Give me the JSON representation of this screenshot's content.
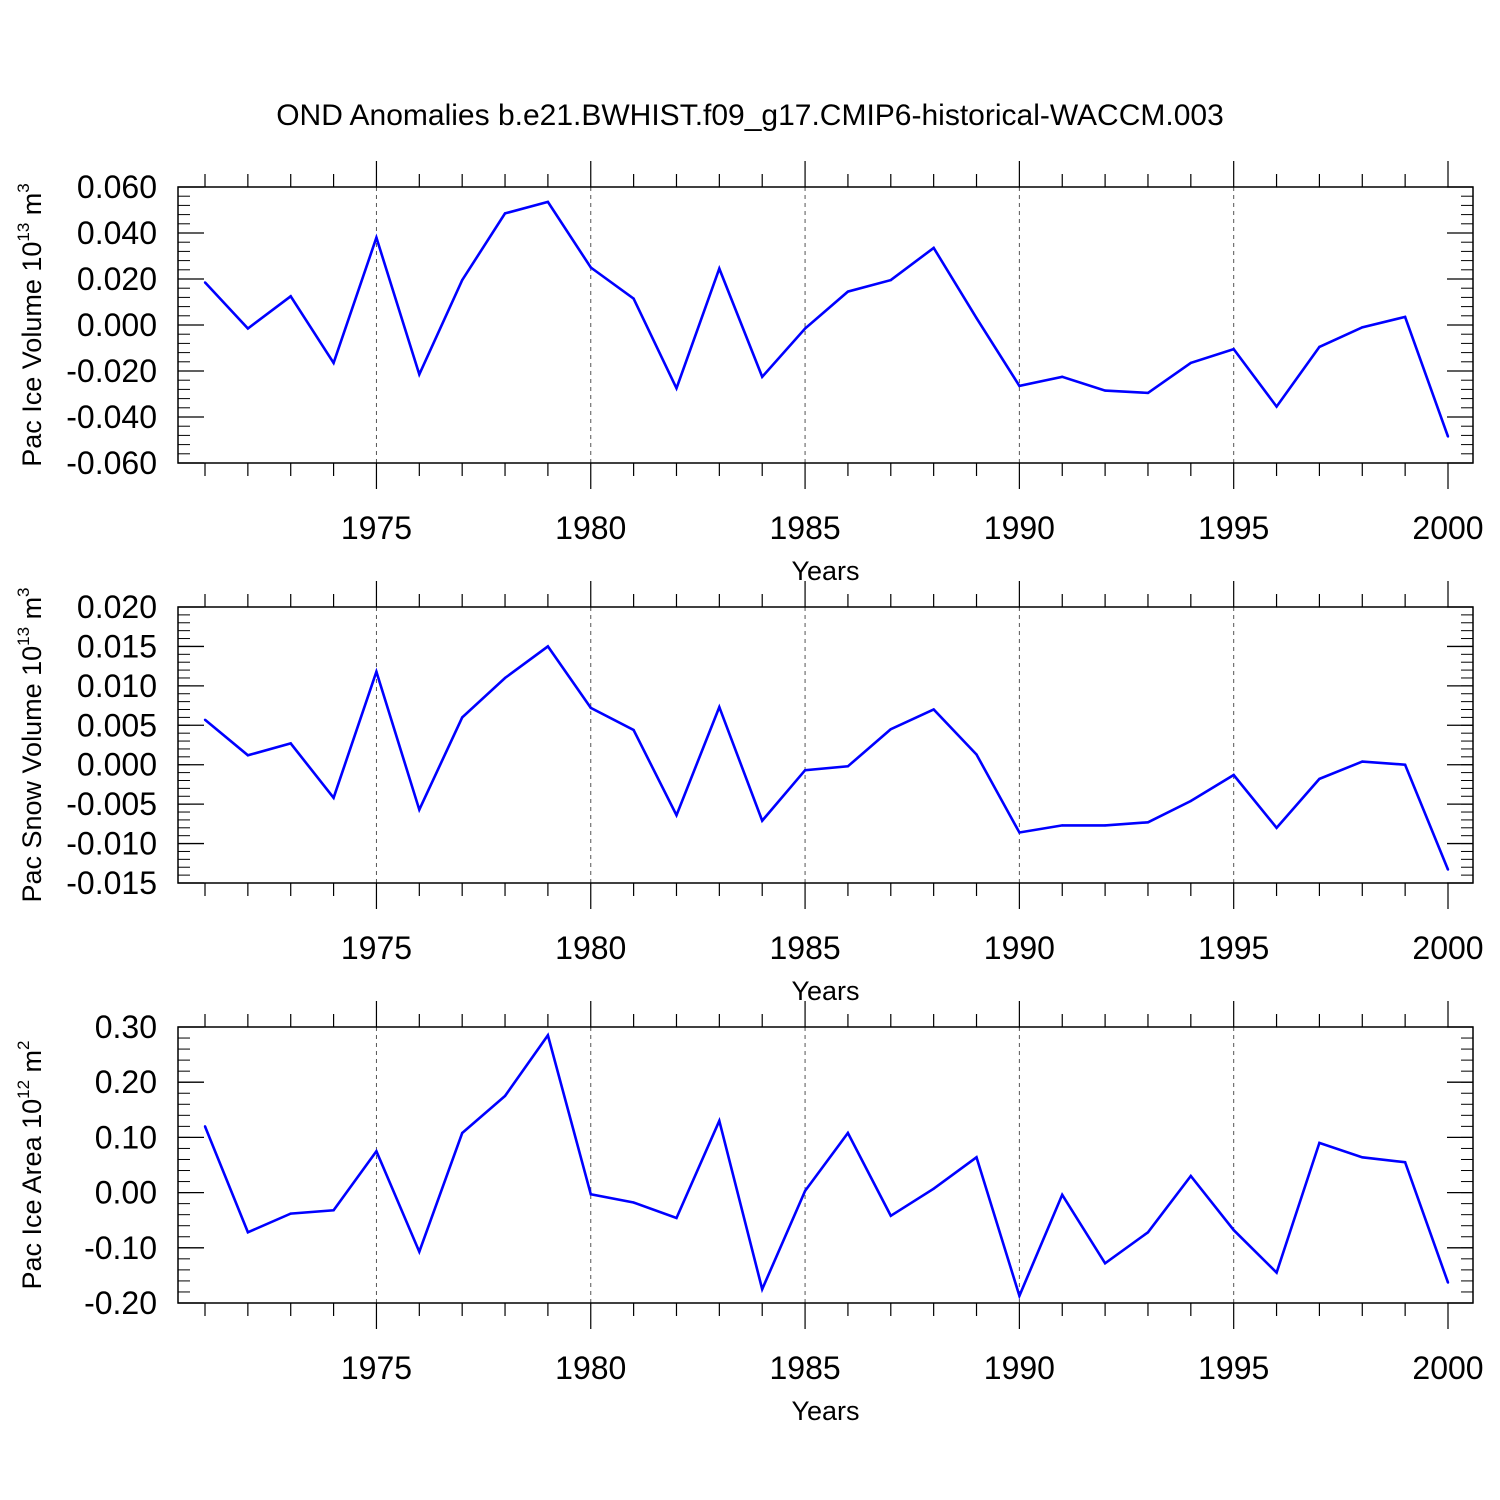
{
  "figure": {
    "title": "OND Anomalies b.e21.BWHIST.f09_g17.CMIP6-historical-WACCM.003"
  },
  "colors": {
    "series": "#0000ff",
    "axis": "#000000",
    "grid": "#555555"
  },
  "chart_data": [
    {
      "type": "line",
      "ylabel": {
        "pre": "Pac Ice Volume 10",
        "sup1": "13",
        "mid": " m",
        "sup2": "3"
      },
      "xlabel": "Years",
      "xlim": [
        1971,
        2000
      ],
      "ylim": [
        -0.06,
        0.06
      ],
      "x_tick_values": [
        1975,
        1980,
        1985,
        1990,
        1995,
        2000
      ],
      "x_tick_labels": [
        "1975",
        "1980",
        "1985",
        "1990",
        "1995",
        "2000"
      ],
      "y_tick_values": [
        -0.06,
        -0.04,
        -0.02,
        0.0,
        0.02,
        0.04,
        0.06
      ],
      "y_tick_labels": [
        "-0.060",
        "-0.040",
        "-0.020",
        "0.000",
        "0.020",
        "0.040",
        "0.060"
      ],
      "y_minor_step": 0.004,
      "grid": "dashed vertical at major x ticks",
      "x": [
        1971,
        1972,
        1973,
        1974,
        1975,
        1976,
        1977,
        1978,
        1979,
        1980,
        1981,
        1982,
        1983,
        1984,
        1985,
        1986,
        1987,
        1988,
        1989,
        1990,
        1991,
        1992,
        1993,
        1994,
        1995,
        1996,
        1997,
        1998,
        1999,
        2000
      ],
      "series": [
        {
          "values": [
            0.0185,
            -0.0015,
            0.0125,
            -0.0165,
            0.038,
            -0.0215,
            0.0195,
            0.0485,
            0.0535,
            0.025,
            0.0115,
            -0.0275,
            0.0245,
            -0.0225,
            -0.0015,
            0.0145,
            0.0195,
            0.0335,
            0.003,
            -0.0265,
            -0.0225,
            -0.0285,
            -0.0295,
            -0.0165,
            -0.0105,
            -0.0355,
            -0.0095,
            -0.001,
            0.0035,
            -0.0485
          ]
        }
      ]
    },
    {
      "type": "line",
      "ylabel": {
        "pre": "Pac Snow Volume 10",
        "sup1": "13",
        "mid": " m",
        "sup2": "3"
      },
      "xlabel": "Years",
      "xlim": [
        1971,
        2000
      ],
      "ylim": [
        -0.015,
        0.02
      ],
      "x_tick_values": [
        1975,
        1980,
        1985,
        1990,
        1995,
        2000
      ],
      "x_tick_labels": [
        "1975",
        "1980",
        "1985",
        "1990",
        "1995",
        "2000"
      ],
      "y_tick_values": [
        -0.015,
        -0.01,
        -0.005,
        0.0,
        0.005,
        0.01,
        0.015,
        0.02
      ],
      "y_tick_labels": [
        "-0.015",
        "-0.010",
        "-0.005",
        "0.000",
        "0.005",
        "0.010",
        "0.015",
        "0.020"
      ],
      "y_minor_step": 0.001,
      "grid": "dashed vertical at major x ticks",
      "x": [
        1971,
        1972,
        1973,
        1974,
        1975,
        1976,
        1977,
        1978,
        1979,
        1980,
        1981,
        1982,
        1983,
        1984,
        1985,
        1986,
        1987,
        1988,
        1989,
        1990,
        1991,
        1992,
        1993,
        1994,
        1995,
        1996,
        1997,
        1998,
        1999,
        2000
      ],
      "series": [
        {
          "values": [
            0.0057,
            0.0012,
            0.0027,
            -0.0042,
            0.0118,
            -0.0057,
            0.006,
            0.011,
            0.015,
            0.0072,
            0.0044,
            -0.0064,
            0.0073,
            -0.0071,
            -0.0007,
            -0.0002,
            0.0045,
            0.007,
            0.0013,
            -0.0086,
            -0.0077,
            -0.0077,
            -0.0073,
            -0.0046,
            -0.0013,
            -0.008,
            -0.0018,
            0.0004,
            0.0,
            -0.0133
          ]
        }
      ]
    },
    {
      "type": "line",
      "ylabel": {
        "pre": "Pac Ice Area 10",
        "sup1": "12",
        "mid": " m",
        "sup2": "2"
      },
      "xlabel": "Years",
      "xlim": [
        1971,
        2000
      ],
      "ylim": [
        -0.2,
        0.3
      ],
      "x_tick_values": [
        1975,
        1980,
        1985,
        1990,
        1995,
        2000
      ],
      "x_tick_labels": [
        "1975",
        "1980",
        "1985",
        "1990",
        "1995",
        "2000"
      ],
      "y_tick_values": [
        -0.2,
        -0.1,
        0.0,
        0.1,
        0.2,
        0.3
      ],
      "y_tick_labels": [
        "-0.20",
        "-0.10",
        "0.00",
        "0.10",
        "0.20",
        "0.30"
      ],
      "y_minor_step": 0.02,
      "grid": "dashed vertical at major x ticks",
      "x": [
        1971,
        1972,
        1973,
        1974,
        1975,
        1976,
        1977,
        1978,
        1979,
        1980,
        1981,
        1982,
        1983,
        1984,
        1985,
        1986,
        1987,
        1988,
        1989,
        1990,
        1991,
        1992,
        1993,
        1994,
        1995,
        1996,
        1997,
        1998,
        1999,
        2000
      ],
      "series": [
        {
          "values": [
            0.12,
            -0.072,
            -0.038,
            -0.032,
            0.075,
            -0.107,
            0.108,
            0.175,
            0.285,
            -0.003,
            -0.018,
            -0.046,
            0.13,
            -0.175,
            0.003,
            0.108,
            -0.042,
            0.007,
            0.064,
            -0.187,
            -0.004,
            -0.128,
            -0.072,
            0.03,
            -0.068,
            -0.145,
            0.09,
            0.064,
            0.055,
            -0.163
          ]
        }
      ]
    }
  ]
}
